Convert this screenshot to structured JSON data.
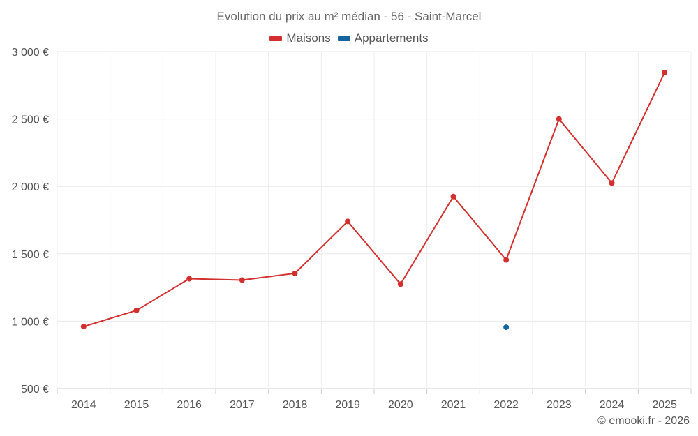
{
  "chart_data": {
    "type": "line",
    "title": "Evolution du prix au m² médian - 56 - Saint-Marcel",
    "xlabel": "",
    "ylabel": "",
    "categories": [
      "2014",
      "2015",
      "2016",
      "2017",
      "2018",
      "2019",
      "2020",
      "2021",
      "2022",
      "2023",
      "2024",
      "2025"
    ],
    "y_ticks": [
      500,
      1000,
      1500,
      2000,
      2500,
      3000
    ],
    "y_tick_labels": [
      "500 €",
      "1 000 €",
      "1 500 €",
      "2 000 €",
      "2 500 €",
      "3 000 €"
    ],
    "ylim": [
      500,
      3000
    ],
    "grid": true,
    "legend_position": "top-center",
    "series": [
      {
        "name": "Maisons",
        "color": "#d32f2f",
        "values": [
          960,
          1080,
          1315,
          1305,
          1355,
          1740,
          1275,
          1925,
          1455,
          2500,
          2025,
          2845
        ]
      },
      {
        "name": "Appartements",
        "color": "#1565a0",
        "values": [
          null,
          null,
          null,
          null,
          null,
          null,
          null,
          null,
          955,
          null,
          null,
          null
        ]
      }
    ]
  },
  "credit": "© emooki.fr - 2026"
}
